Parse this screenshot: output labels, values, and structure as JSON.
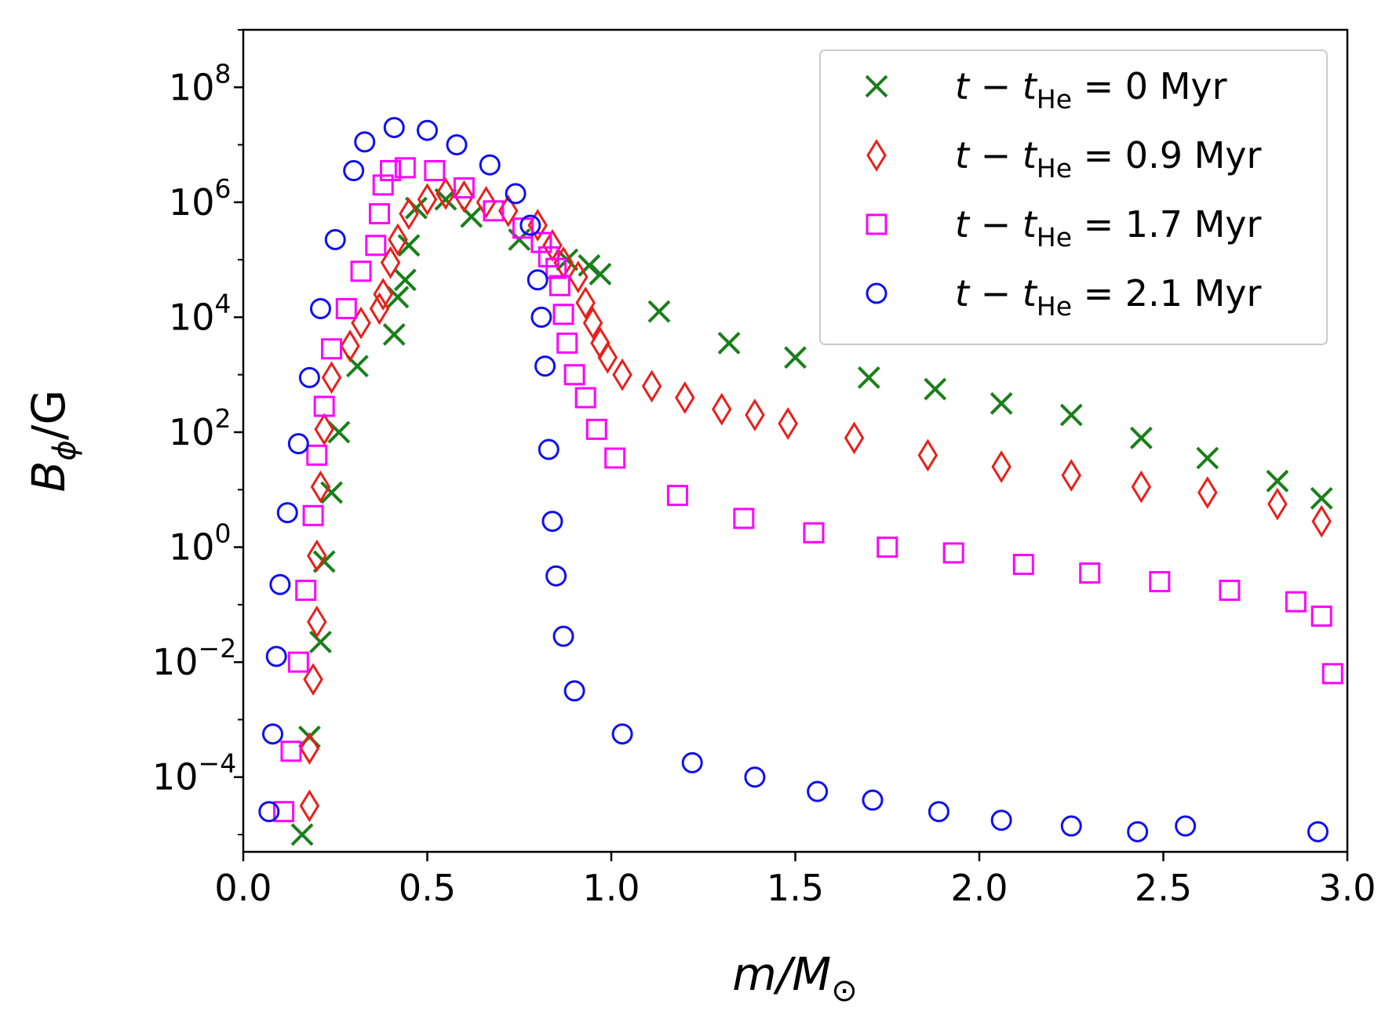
{
  "chart_data": {
    "type": "scatter",
    "title": "",
    "xlabel": {
      "main": "m/M",
      "sub": "⊙"
    },
    "ylabel": {
      "main": "B",
      "sub": "ϕ",
      "tail": "/G"
    },
    "xlim": [
      0.0,
      3.0
    ],
    "ylim_log10": [
      -5.3,
      9.0
    ],
    "x_ticks": [
      0.0,
      0.5,
      1.0,
      1.5,
      2.0,
      2.5,
      3.0
    ],
    "x_tick_labels": [
      "0.0",
      "0.5",
      "1.0",
      "1.5",
      "2.0",
      "2.5",
      "3.0"
    ],
    "y_ticks_log10": [
      -4,
      -2,
      0,
      2,
      4,
      6,
      8
    ],
    "y_tick_labels": [
      {
        "base": "10",
        "exp": "−4"
      },
      {
        "base": "10",
        "exp": "−2"
      },
      {
        "base": "10",
        "exp": "0"
      },
      {
        "base": "10",
        "exp": "2"
      },
      {
        "base": "10",
        "exp": "4"
      },
      {
        "base": "10",
        "exp": "6"
      },
      {
        "base": "10",
        "exp": "8"
      }
    ],
    "grid": false,
    "legend_position": "top-right",
    "series": [
      {
        "name": "t − t_He = 0 Myr",
        "label": {
          "t": "t",
          "minus": " − ",
          "t2": "t",
          "sub": "He",
          "rest": " = 0 Myr"
        },
        "marker": "x",
        "color": "#1a7f1a",
        "x": [
          0.16,
          0.18,
          0.21,
          0.22,
          0.24,
          0.26,
          0.31,
          0.41,
          0.42,
          0.44,
          0.45,
          0.47,
          0.55,
          0.62,
          0.75,
          0.88,
          0.94,
          0.97,
          1.13,
          1.32,
          1.5,
          1.7,
          1.88,
          2.06,
          2.25,
          2.44,
          2.62,
          2.81,
          2.93
        ],
        "y_log10": [
          -5.0,
          -3.3,
          -1.65,
          -0.25,
          0.95,
          2.0,
          3.15,
          3.7,
          4.35,
          4.65,
          5.25,
          5.9,
          6.05,
          5.75,
          5.35,
          5.0,
          4.9,
          4.75,
          4.1,
          3.55,
          3.3,
          2.95,
          2.75,
          2.5,
          2.3,
          1.9,
          1.55,
          1.15,
          0.85
        ]
      },
      {
        "name": "t − t_He = 0.9 Myr",
        "label": {
          "t": "t",
          "minus": " − ",
          "t2": "t",
          "sub": "He",
          "rest": " = 0.9 Myr"
        },
        "marker": "diamond",
        "color": "#e8201a",
        "x": [
          0.18,
          0.18,
          0.19,
          0.2,
          0.2,
          0.21,
          0.22,
          0.24,
          0.29,
          0.32,
          0.37,
          0.38,
          0.4,
          0.42,
          0.45,
          0.5,
          0.55,
          0.6,
          0.66,
          0.72,
          0.8,
          0.84,
          0.87,
          0.91,
          0.93,
          0.95,
          0.97,
          0.99,
          1.03,
          1.11,
          1.2,
          1.3,
          1.39,
          1.48,
          1.66,
          1.86,
          2.06,
          2.25,
          2.44,
          2.62,
          2.81,
          2.93
        ],
        "y_log10": [
          -4.5,
          -3.5,
          -2.3,
          -1.3,
          -0.15,
          1.05,
          2.05,
          2.95,
          3.5,
          3.9,
          4.15,
          4.4,
          4.95,
          5.35,
          5.8,
          6.05,
          6.15,
          6.1,
          6.0,
          5.85,
          5.6,
          5.25,
          4.95,
          4.7,
          4.25,
          3.9,
          3.55,
          3.3,
          3.0,
          2.8,
          2.6,
          2.4,
          2.3,
          2.15,
          1.9,
          1.6,
          1.4,
          1.25,
          1.05,
          0.95,
          0.75,
          0.45
        ]
      },
      {
        "name": "t − t_He = 1.7 Myr",
        "label": {
          "t": "t",
          "minus": " − ",
          "t2": "t",
          "sub": "He",
          "rest": " = 1.7 Myr"
        },
        "marker": "square",
        "color": "#ff00ff",
        "x": [
          0.11,
          0.13,
          0.15,
          0.17,
          0.19,
          0.2,
          0.22,
          0.24,
          0.28,
          0.32,
          0.36,
          0.37,
          0.38,
          0.4,
          0.44,
          0.52,
          0.6,
          0.68,
          0.76,
          0.81,
          0.83,
          0.85,
          0.86,
          0.87,
          0.88,
          0.9,
          0.93,
          0.96,
          1.01,
          1.18,
          1.36,
          1.55,
          1.75,
          1.93,
          2.12,
          2.3,
          2.49,
          2.68,
          2.86,
          2.93,
          2.96
        ],
        "y_log10": [
          -4.6,
          -3.55,
          -2.0,
          -0.75,
          0.55,
          1.6,
          2.45,
          3.45,
          4.15,
          4.8,
          5.25,
          5.8,
          6.3,
          6.55,
          6.6,
          6.55,
          6.25,
          5.85,
          5.55,
          5.3,
          5.05,
          4.85,
          4.55,
          4.05,
          3.55,
          3.0,
          2.6,
          2.05,
          1.55,
          0.9,
          0.5,
          0.25,
          0.0,
          -0.1,
          -0.3,
          -0.45,
          -0.6,
          -0.75,
          -0.95,
          -1.2,
          -2.2
        ]
      },
      {
        "name": "t − t_He = 2.1 Myr",
        "label": {
          "t": "t",
          "minus": " − ",
          "t2": "t",
          "sub": "He",
          "rest": " = 2.1 Myr"
        },
        "marker": "circle",
        "color": "#1010f0",
        "x": [
          0.07,
          0.08,
          0.09,
          0.1,
          0.12,
          0.15,
          0.18,
          0.21,
          0.25,
          0.3,
          0.33,
          0.41,
          0.5,
          0.58,
          0.67,
          0.74,
          0.78,
          0.8,
          0.81,
          0.82,
          0.83,
          0.84,
          0.85,
          0.87,
          0.9,
          1.03,
          1.22,
          1.39,
          1.56,
          1.71,
          1.89,
          2.06,
          2.25,
          2.43,
          2.56,
          2.92
        ],
        "y_log10": [
          -4.6,
          -3.25,
          -1.9,
          -0.65,
          0.6,
          1.8,
          2.95,
          4.15,
          5.35,
          6.55,
          7.05,
          7.3,
          7.25,
          7.0,
          6.65,
          6.15,
          5.6,
          4.65,
          4.0,
          3.15,
          1.7,
          0.45,
          -0.5,
          -1.55,
          -2.5,
          -3.25,
          -3.75,
          -4.0,
          -4.25,
          -4.4,
          -4.6,
          -4.75,
          -4.85,
          -4.95,
          -4.85,
          -4.95
        ]
      }
    ]
  }
}
